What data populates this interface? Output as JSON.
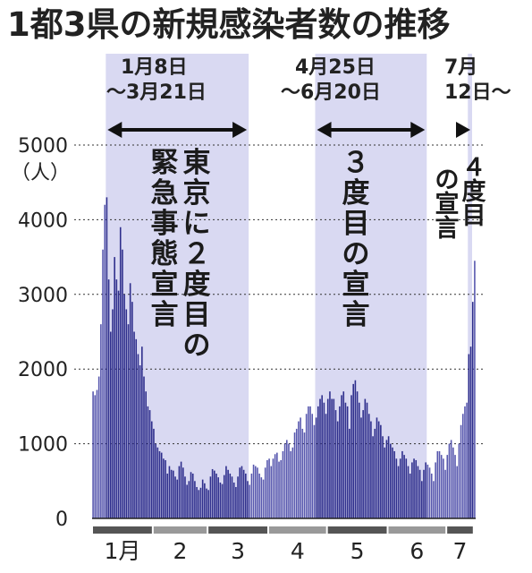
{
  "chart_data": {
    "type": "bar",
    "title": "1都3県の新規感染者数の推移",
    "xlabel": "",
    "ylabel": "",
    "unit_label": "（人）",
    "ylim": [
      0,
      5000
    ],
    "yticks": [
      0,
      1000,
      2000,
      3000,
      4000,
      5000
    ],
    "grid": true,
    "x_start": "2021-01-01",
    "months": [
      {
        "label": "1月",
        "start": "2021-01-01",
        "end": "2021-01-31"
      },
      {
        "label": "2",
        "start": "2021-02-01",
        "end": "2021-02-28"
      },
      {
        "label": "3",
        "start": "2021-03-01",
        "end": "2021-03-31"
      },
      {
        "label": "4",
        "start": "2021-04-01",
        "end": "2021-04-30"
      },
      {
        "label": "5",
        "start": "2021-05-01",
        "end": "2021-05-31"
      },
      {
        "label": "6",
        "start": "2021-06-01",
        "end": "2021-06-30"
      },
      {
        "label": "7",
        "start": "2021-07-01",
        "end": "2021-07-14"
      }
    ],
    "series": [
      {
        "values": [
          1700,
          1650,
          1720,
          1900,
          2600,
          3600,
          4200,
          4300,
          3200,
          2500,
          2800,
          3500,
          3200,
          3050,
          3900,
          3600,
          3000,
          2800,
          2600,
          3150,
          2900,
          2500,
          2400,
          2200,
          2050,
          2300,
          1900,
          1700,
          1500,
          1450,
          1300,
          1200,
          1000,
          950,
          900,
          880,
          800,
          780,
          600,
          700,
          650,
          640,
          560,
          520,
          700,
          760,
          680,
          560,
          450,
          500,
          620,
          600,
          500,
          420,
          380,
          410,
          520,
          470,
          400,
          380,
          560,
          660,
          640,
          600,
          550,
          480,
          460,
          580,
          700,
          650,
          600,
          560,
          480,
          420,
          560,
          680,
          700,
          650,
          600,
          500,
          450,
          600,
          720,
          700,
          680,
          600,
          550,
          520,
          680,
          780,
          800,
          700,
          800,
          860,
          880,
          760,
          780,
          900,
          1000,
          1050,
          1000,
          900,
          950,
          1150,
          1200,
          1300,
          1350,
          1200,
          1150,
          1400,
          1500,
          1500,
          1400,
          1250,
          1350,
          1500,
          1600,
          1650,
          1550,
          1400,
          1600,
          1700,
          1600,
          1600,
          1450,
          1300,
          1500,
          1650,
          1700,
          1550,
          1500,
          1200,
          1650,
          1800,
          1850,
          1700,
          1550,
          1350,
          1450,
          1600,
          1550,
          1400,
          1300,
          1100,
          1200,
          1350,
          1300,
          1250,
          1100,
          950,
          1050,
          1100,
          1000,
          950,
          900,
          800,
          700,
          800,
          900,
          850,
          800,
          700,
          600,
          750,
          800,
          780,
          700,
          650,
          500,
          650,
          750,
          720,
          680,
          600,
          500,
          750,
          900,
          900,
          850,
          800,
          650,
          850,
          1000,
          1050,
          950,
          850,
          700,
          1000,
          1250,
          1400,
          1500,
          1550,
          2200,
          2300,
          2900,
          3450
        ]
      }
    ],
    "bands": [
      {
        "start": "2021-01-08",
        "end": "2021-03-21",
        "period": [
          "1月8日",
          "～3月21日"
        ],
        "label_lines": [
          "東京に２度目の",
          "緊急事態宣言"
        ]
      },
      {
        "start": "2021-04-25",
        "end": "2021-06-20",
        "period": [
          "4月25日",
          "～6月20日"
        ],
        "label_lines": [
          "３度目の宣言"
        ]
      },
      {
        "start": "2021-07-12",
        "end": "2021-07-14",
        "period": [
          "7月",
          "12日～"
        ],
        "label_lines": [
          "４度目",
          "の宣言"
        ]
      }
    ],
    "colors": {
      "bar": "#3a3aa0",
      "bar_in_band": "#2e2e8c",
      "band": "#d9d9f2",
      "axis": "#222222",
      "month_dark": "#555555",
      "month_light": "#999999"
    }
  }
}
